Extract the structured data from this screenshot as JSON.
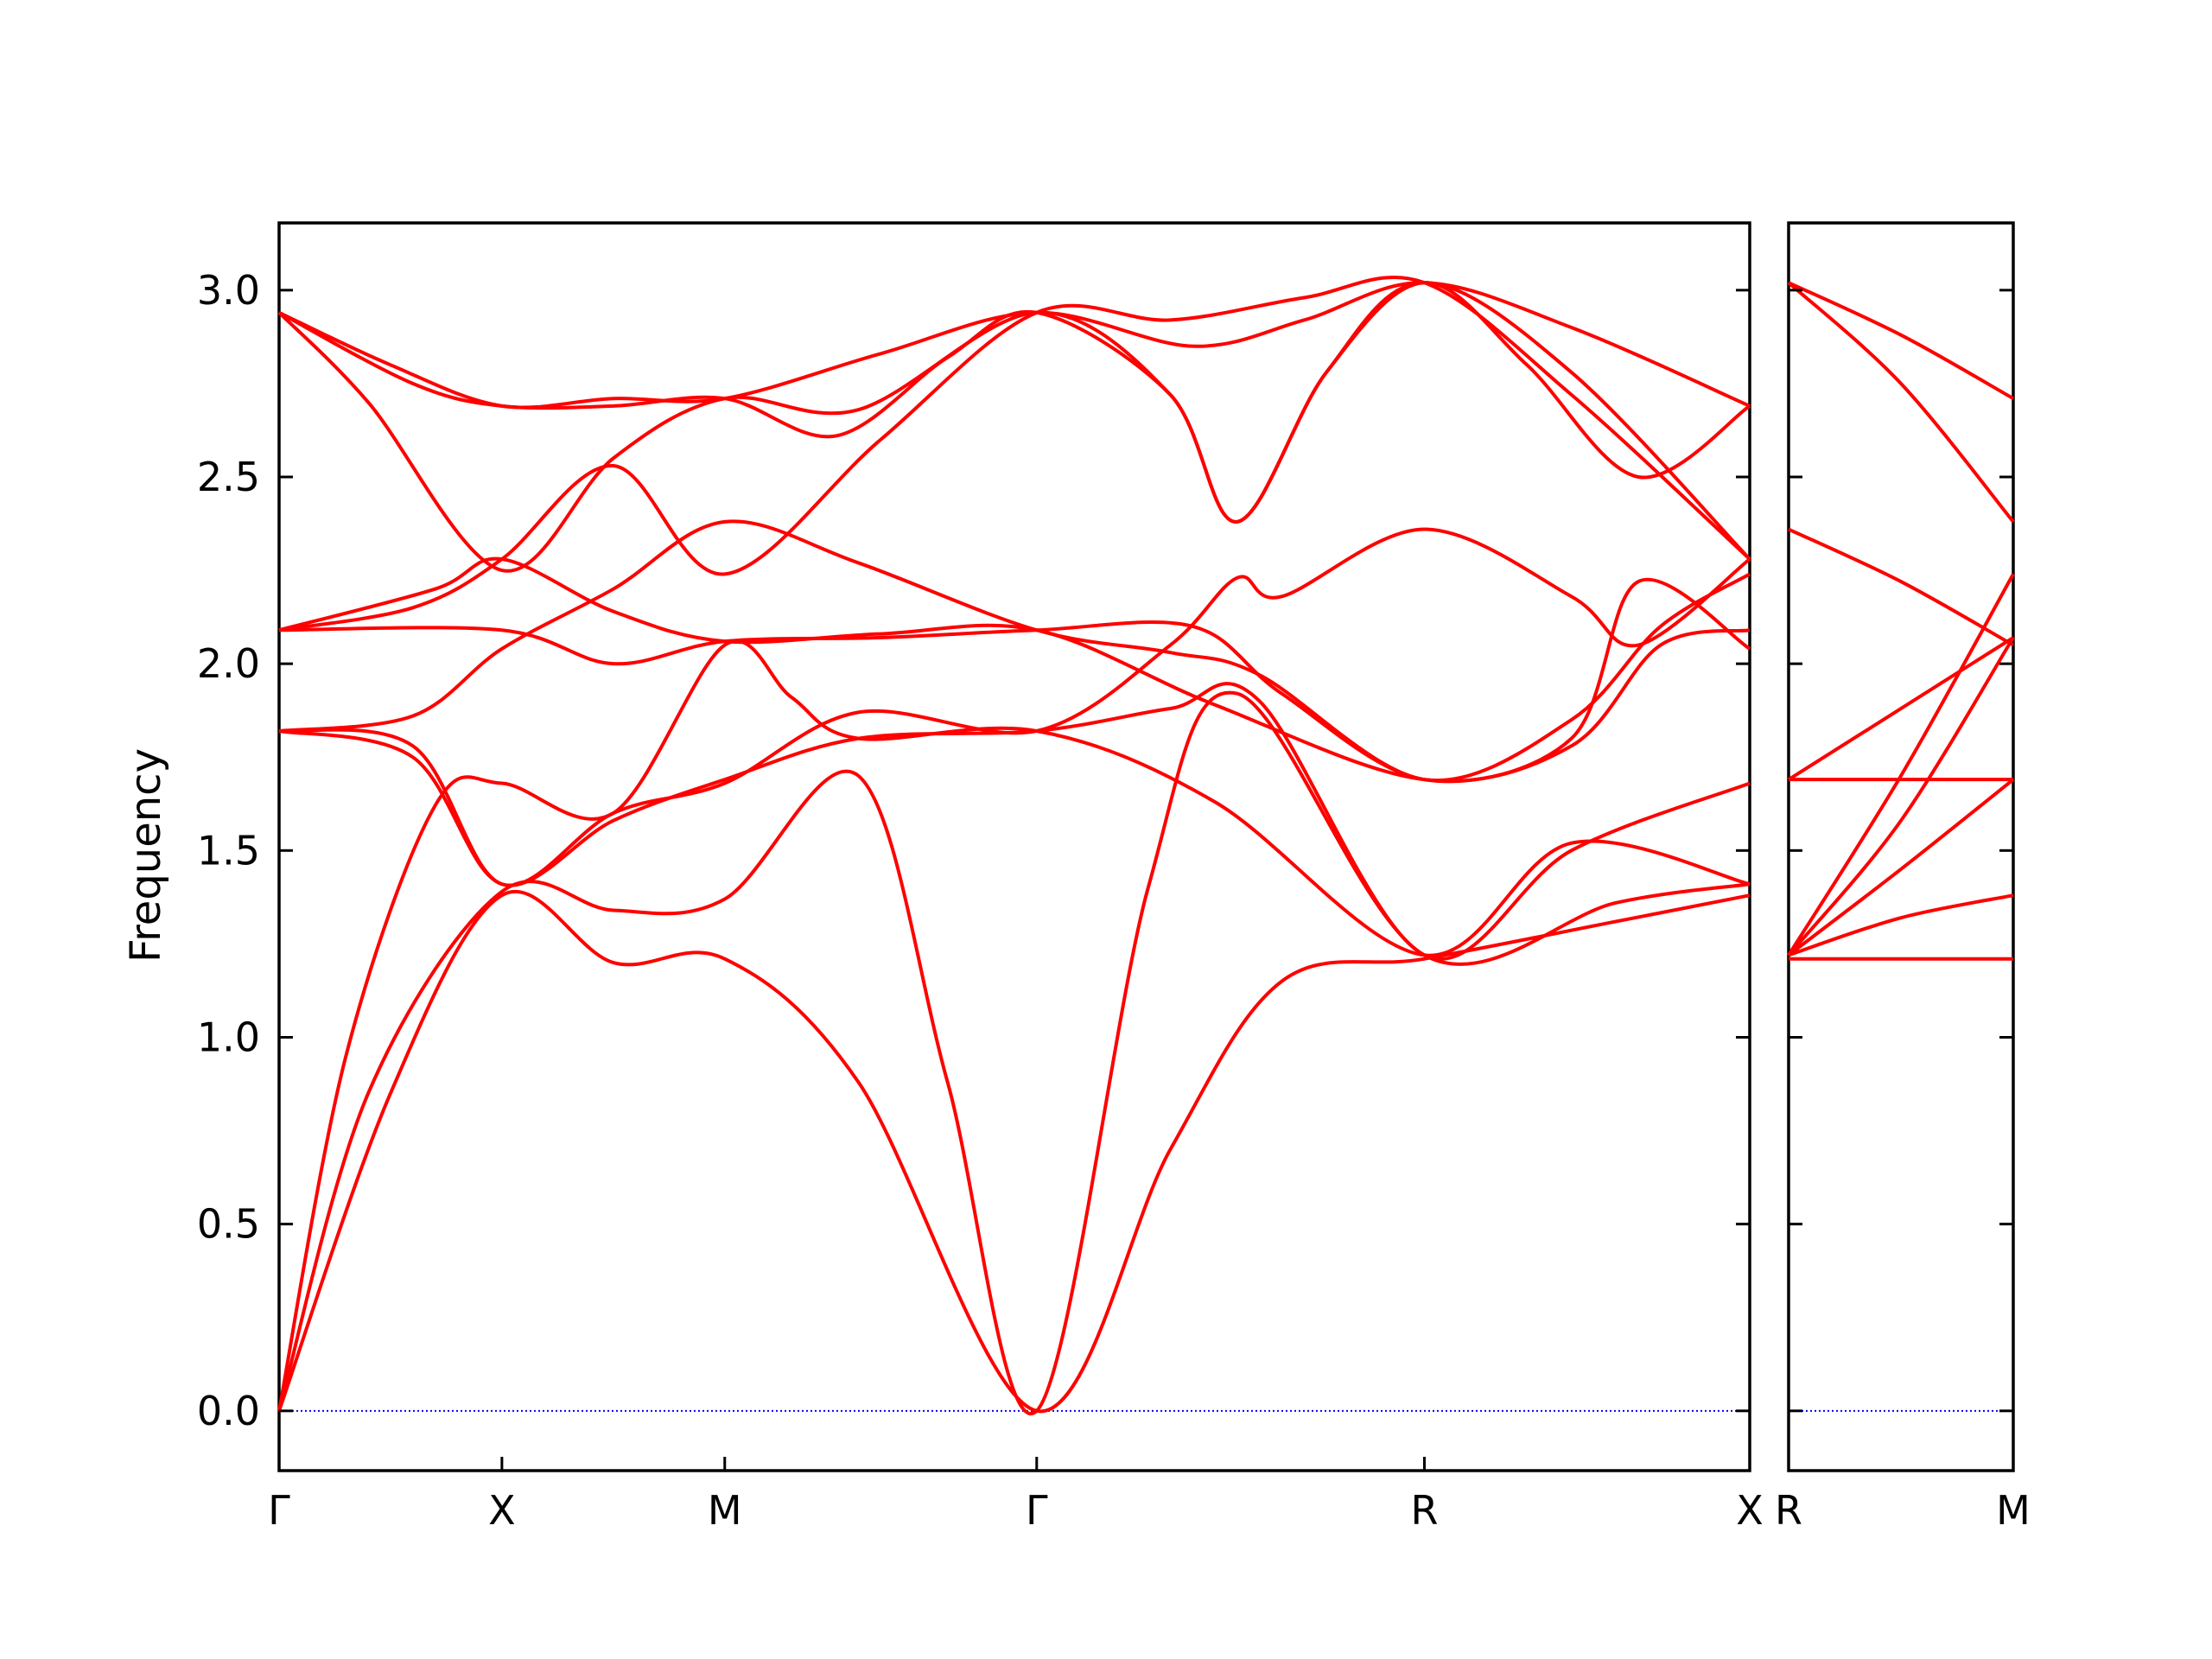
{
  "chart_data": {
    "type": "line",
    "ylabel": "Frequency",
    "ylim": [
      -0.16,
      3.18
    ],
    "yticks": [
      0.0,
      0.5,
      1.0,
      1.5,
      2.0,
      2.5,
      3.0
    ],
    "ytick_labels": [
      "0.0",
      "0.5",
      "1.0",
      "1.5",
      "2.0",
      "2.5",
      "3.0"
    ],
    "band_color": "#ff0000",
    "zero_line_color": "#0000ff",
    "panels": [
      {
        "id": "main",
        "xlim": [
          0,
          3.3
        ],
        "ticks": [
          {
            "x": 0.0,
            "label": "Γ"
          },
          {
            "x": 0.5,
            "label": "X"
          },
          {
            "x": 1.0,
            "label": "M"
          },
          {
            "x": 1.7,
            "label": "Γ"
          },
          {
            "x": 2.57,
            "label": "R"
          },
          {
            "x": 3.3,
            "label": "X"
          }
        ],
        "bands": [
          [
            [
              0,
              2.94
            ],
            [
              0.25,
              2.8
            ],
            [
              0.5,
              2.69
            ],
            [
              0.75,
              2.71
            ],
            [
              1.0,
              2.71
            ],
            [
              1.35,
              2.83
            ],
            [
              1.7,
              2.94
            ],
            [
              2.05,
              2.85
            ],
            [
              2.3,
              2.92
            ],
            [
              2.57,
              3.02
            ],
            [
              2.9,
              2.9
            ],
            [
              3.3,
              2.69
            ]
          ],
          [
            [
              0,
              2.94
            ],
            [
              0.3,
              2.75
            ],
            [
              0.5,
              2.69
            ],
            [
              0.75,
              2.69
            ],
            [
              1.0,
              2.71
            ],
            [
              1.25,
              2.61
            ],
            [
              1.5,
              2.82
            ],
            [
              1.7,
              2.94
            ],
            [
              2.0,
              2.72
            ],
            [
              2.15,
              2.38
            ],
            [
              2.35,
              2.78
            ],
            [
              2.57,
              3.02
            ],
            [
              2.8,
              2.8
            ],
            [
              3.05,
              2.5
            ],
            [
              3.3,
              2.69
            ]
          ],
          [
            [
              0,
              2.94
            ],
            [
              0.2,
              2.7
            ],
            [
              0.5,
              2.25
            ],
            [
              0.75,
              2.55
            ],
            [
              1.0,
              2.71
            ],
            [
              1.3,
              2.68
            ],
            [
              1.7,
              2.94
            ],
            [
              2.0,
              2.72
            ],
            [
              2.15,
              2.38
            ],
            [
              2.35,
              2.78
            ],
            [
              2.57,
              3.02
            ],
            [
              2.9,
              2.78
            ],
            [
              3.3,
              2.28
            ]
          ],
          [
            [
              0,
              2.09
            ],
            [
              0.3,
              2.15
            ],
            [
              0.5,
              2.28
            ],
            [
              0.75,
              2.53
            ],
            [
              1.0,
              2.24
            ],
            [
              1.35,
              2.6
            ],
            [
              1.7,
              2.94
            ],
            [
              2.0,
              2.92
            ],
            [
              2.3,
              2.98
            ],
            [
              2.57,
              3.02
            ],
            [
              2.9,
              2.72
            ],
            [
              3.3,
              2.28
            ]
          ],
          [
            [
              0,
              2.09
            ],
            [
              0.35,
              2.2
            ],
            [
              0.5,
              2.28
            ],
            [
              0.75,
              2.14
            ],
            [
              1.0,
              2.06
            ],
            [
              1.35,
              2.08
            ],
            [
              1.7,
              2.09
            ],
            [
              2.1,
              1.89
            ],
            [
              2.57,
              1.69
            ],
            [
              2.9,
              1.78
            ],
            [
              3.1,
              2.05
            ],
            [
              3.3,
              2.09
            ]
          ],
          [
            [
              0,
              2.09
            ],
            [
              0.5,
              2.09
            ],
            [
              0.75,
              2.0
            ],
            [
              1.0,
              2.06
            ],
            [
              1.35,
              2.07
            ],
            [
              1.7,
              2.09
            ],
            [
              2.05,
              2.1
            ],
            [
              2.25,
              1.92
            ],
            [
              2.57,
              1.69
            ],
            [
              2.9,
              1.8
            ],
            [
              3.05,
              2.22
            ],
            [
              3.3,
              2.04
            ]
          ],
          [
            [
              0,
              1.82
            ],
            [
              0.3,
              1.86
            ],
            [
              0.5,
              2.04
            ],
            [
              0.75,
              2.2
            ],
            [
              1.0,
              2.38
            ],
            [
              1.3,
              2.27
            ],
            [
              1.7,
              2.09
            ],
            [
              2.0,
              2.03
            ],
            [
              2.2,
              1.97
            ],
            [
              2.57,
              1.69
            ],
            [
              2.9,
              1.85
            ],
            [
              3.1,
              2.1
            ],
            [
              3.3,
              2.24
            ]
          ],
          [
            [
              0,
              1.82
            ],
            [
              0.3,
              1.78
            ],
            [
              0.5,
              1.41
            ],
            [
              0.75,
              1.6
            ],
            [
              1.0,
              1.68
            ],
            [
              1.3,
              1.87
            ],
            [
              1.7,
              1.82
            ],
            [
              2.0,
              2.05
            ],
            [
              2.15,
              2.23
            ],
            [
              2.25,
              2.18
            ],
            [
              2.57,
              2.36
            ],
            [
              2.9,
              2.18
            ],
            [
              3.05,
              2.05
            ],
            [
              3.3,
              2.28
            ]
          ],
          [
            [
              0,
              1.82
            ],
            [
              0.3,
              1.75
            ],
            [
              0.5,
              1.41
            ],
            [
              0.75,
              1.58
            ],
            [
              1.0,
              1.69
            ],
            [
              1.3,
              1.8
            ],
            [
              1.7,
              1.82
            ],
            [
              2.0,
              1.88
            ],
            [
              2.2,
              1.9
            ],
            [
              2.57,
              1.22
            ],
            [
              2.9,
              1.5
            ],
            [
              3.3,
              1.68
            ]
          ],
          [
            [
              0,
              0
            ],
            [
              0.15,
              0.95
            ],
            [
              0.35,
              1.62
            ],
            [
              0.5,
              1.68
            ],
            [
              0.75,
              1.6
            ],
            [
              1.0,
              2.05
            ],
            [
              1.15,
              1.91
            ],
            [
              1.3,
              1.8
            ],
            [
              1.7,
              1.82
            ],
            [
              2.1,
              1.63
            ],
            [
              2.57,
              1.22
            ],
            [
              2.9,
              1.52
            ],
            [
              3.3,
              1.41
            ]
          ],
          [
            [
              0,
              0
            ],
            [
              0.2,
              0.85
            ],
            [
              0.5,
              1.39
            ],
            [
              0.75,
              1.34
            ],
            [
              1.0,
              1.37
            ],
            [
              1.3,
              1.7
            ],
            [
              1.5,
              0.88
            ],
            [
              1.7,
              0
            ],
            [
              1.95,
              1.4
            ],
            [
              2.15,
              1.92
            ],
            [
              2.57,
              1.22
            ],
            [
              3.0,
              1.36
            ],
            [
              3.3,
              1.41
            ]
          ],
          [
            [
              0,
              0
            ],
            [
              0.25,
              0.85
            ],
            [
              0.5,
              1.38
            ],
            [
              0.75,
              1.2
            ],
            [
              1.0,
              1.21
            ],
            [
              1.3,
              0.88
            ],
            [
              1.7,
              0
            ],
            [
              2.0,
              0.7
            ],
            [
              2.25,
              1.15
            ],
            [
              2.57,
              1.21
            ],
            [
              3.0,
              1.31
            ],
            [
              3.3,
              1.38
            ]
          ]
        ]
      },
      {
        "id": "right",
        "xlim": [
          0,
          0.5
        ],
        "ticks": [
          {
            "x": 0.0,
            "label": "R"
          },
          {
            "x": 0.5,
            "label": "M"
          }
        ],
        "bands": [
          [
            [
              0,
              3.02
            ],
            [
              0.25,
              2.88
            ],
            [
              0.5,
              2.71
            ]
          ],
          [
            [
              0,
              3.02
            ],
            [
              0.25,
              2.75
            ],
            [
              0.5,
              2.38
            ]
          ],
          [
            [
              0,
              2.36
            ],
            [
              0.25,
              2.22
            ],
            [
              0.5,
              2.05
            ]
          ],
          [
            [
              0,
              1.69
            ],
            [
              0.25,
              1.88
            ],
            [
              0.5,
              2.07
            ]
          ],
          [
            [
              0,
              1.69
            ],
            [
              0.5,
              1.69
            ]
          ],
          [
            [
              0,
              1.22
            ],
            [
              0.25,
              1.7
            ],
            [
              0.5,
              2.24
            ]
          ],
          [
            [
              0,
              1.22
            ],
            [
              0.25,
              1.58
            ],
            [
              0.5,
              2.07
            ]
          ],
          [
            [
              0,
              1.22
            ],
            [
              0.25,
              1.45
            ],
            [
              0.5,
              1.69
            ]
          ],
          [
            [
              0,
              1.22
            ],
            [
              0.25,
              1.32
            ],
            [
              0.5,
              1.38
            ]
          ],
          [
            [
              0,
              1.21
            ],
            [
              0.5,
              1.21
            ]
          ]
        ]
      }
    ]
  }
}
